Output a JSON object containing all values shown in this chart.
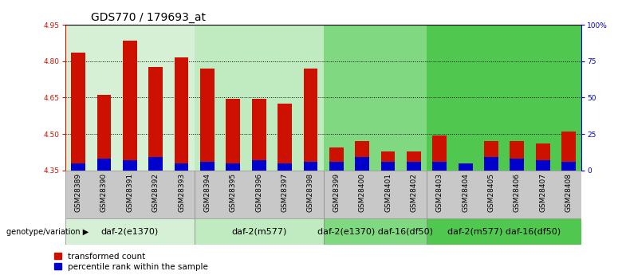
{
  "title": "GDS770 / 179693_at",
  "samples": [
    "GSM28389",
    "GSM28390",
    "GSM28391",
    "GSM28392",
    "GSM28393",
    "GSM28394",
    "GSM28395",
    "GSM28396",
    "GSM28397",
    "GSM28398",
    "GSM28399",
    "GSM28400",
    "GSM28401",
    "GSM28402",
    "GSM28403",
    "GSM28404",
    "GSM28405",
    "GSM28406",
    "GSM28407",
    "GSM28408"
  ],
  "red_values": [
    4.835,
    4.66,
    4.885,
    4.775,
    4.815,
    4.77,
    4.645,
    4.645,
    4.625,
    4.77,
    4.445,
    4.47,
    4.43,
    4.43,
    4.495,
    4.365,
    4.47,
    4.47,
    4.46,
    4.51
  ],
  "blue_pct": [
    5,
    8,
    7,
    9,
    5,
    6,
    5,
    7,
    5,
    6,
    6,
    9,
    6,
    6,
    6,
    5,
    9,
    8,
    7,
    6
  ],
  "ymin": 4.35,
  "ymax": 4.95,
  "yright_max": 100,
  "yticks_left": [
    4.35,
    4.5,
    4.65,
    4.8,
    4.95
  ],
  "yticks_right": [
    0,
    25,
    50,
    75,
    100
  ],
  "ytick_labels_right": [
    "0",
    "25",
    "50",
    "75",
    "100%"
  ],
  "groups": [
    {
      "label": "daf-2(e1370)",
      "start": 0,
      "end": 4,
      "color": "#d5f0d5"
    },
    {
      "label": "daf-2(m577)",
      "start": 5,
      "end": 9,
      "color": "#c0eac0"
    },
    {
      "label": "daf-2(e1370) daf-16(df50)",
      "start": 10,
      "end": 13,
      "color": "#80d880"
    },
    {
      "label": "daf-2(m577) daf-16(df50)",
      "start": 14,
      "end": 19,
      "color": "#50c850"
    }
  ],
  "bar_width": 0.55,
  "red_color": "#cc1100",
  "blue_color": "#0000cc",
  "title_fontsize": 10,
  "tick_fontsize": 6.5,
  "group_fontsize": 8,
  "legend_fontsize": 7.5,
  "gray_band": "#c8c8c8"
}
